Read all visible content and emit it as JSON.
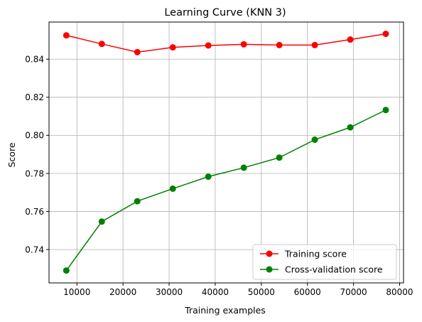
{
  "chart_data": {
    "type": "line",
    "title": "Learning Curve (KNN 3)",
    "xlabel": "Training examples",
    "ylabel": "Score",
    "xlim": [
      3950,
      80850
    ],
    "ylim": [
      0.7225,
      0.8595
    ],
    "xticks": [
      10000,
      20000,
      30000,
      40000,
      50000,
      60000,
      70000,
      80000
    ],
    "xtick_labels": [
      "10000",
      "20000",
      "30000",
      "40000",
      "50000",
      "60000",
      "70000",
      "80000"
    ],
    "yticks": [
      0.74,
      0.76,
      0.78,
      0.8,
      0.82,
      0.84
    ],
    "ytick_labels": [
      "0.74",
      "0.76",
      "0.78",
      "0.80",
      "0.82",
      "0.84"
    ],
    "grid": true,
    "legend_position": "lower-right",
    "x": [
      7700,
      15400,
      23100,
      30800,
      38500,
      46200,
      53900,
      61600,
      69300,
      77000
    ],
    "series": [
      {
        "name": "Training score",
        "color": "#ff0000",
        "values": [
          0.8525,
          0.848,
          0.8437,
          0.8462,
          0.8472,
          0.8478,
          0.8474,
          0.8474,
          0.8503,
          0.8533
        ]
      },
      {
        "name": "Cross-validation score",
        "color": "#008000",
        "values": [
          0.729,
          0.7547,
          0.7654,
          0.772,
          0.7783,
          0.783,
          0.7883,
          0.7977,
          0.8042,
          0.8133
        ]
      }
    ]
  }
}
